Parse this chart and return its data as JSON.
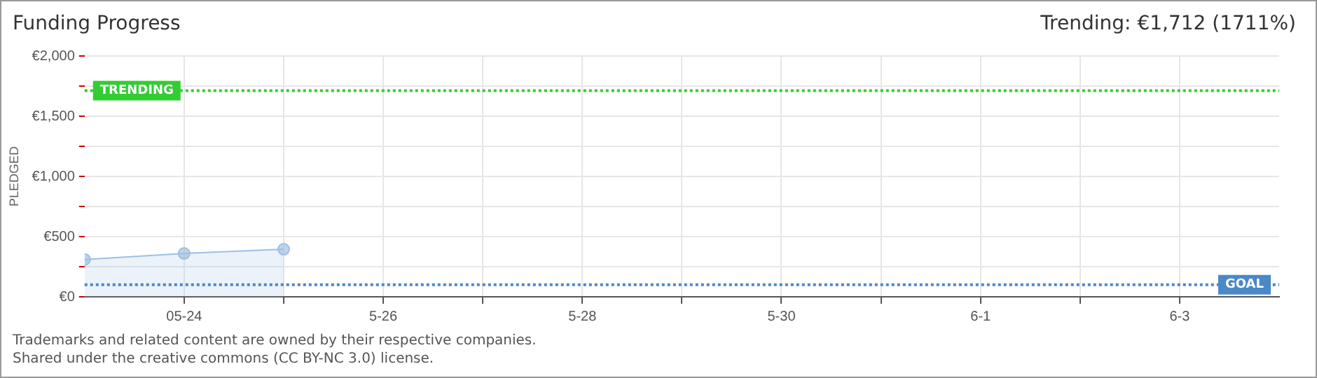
{
  "chart_data": {
    "type": "area",
    "title": "Funding Progress",
    "subtitle": "Trending:  €1,712 (1711%)",
    "ylabel": "PLEDGED",
    "xlim": [
      "--05-23",
      "--06-04"
    ],
    "xticks": [
      {
        "value": "--05-24",
        "label": "05-24"
      },
      {
        "value": "--05-25",
        "label": null
      },
      {
        "value": "--05-26",
        "label": "5-26"
      },
      {
        "value": "--05-27",
        "label": null
      },
      {
        "value": "--05-28",
        "label": "5-28"
      },
      {
        "value": "--05-29",
        "label": null
      },
      {
        "value": "--05-30",
        "label": "5-30"
      },
      {
        "value": "--05-31",
        "label": null
      },
      {
        "value": "--06-01",
        "label": "6-1"
      },
      {
        "value": "--06-02",
        "label": null
      },
      {
        "value": "--06-03",
        "label": "6-3"
      }
    ],
    "ylim": [
      0,
      2000
    ],
    "yticks": [
      {
        "value": 0,
        "label": "€0"
      },
      {
        "value": 250,
        "label": null
      },
      {
        "value": 500,
        "label": "€500"
      },
      {
        "value": 750,
        "label": null
      },
      {
        "value": 1000,
        "label": "€1,000"
      },
      {
        "value": 1250,
        "label": null
      },
      {
        "value": 1500,
        "label": "€1,500"
      },
      {
        "value": 1750,
        "label": null
      },
      {
        "value": 2000,
        "label": "€2,000"
      }
    ],
    "series": [
      {
        "color": "#9dbfe3",
        "x": [
          "--05-23",
          "--05-24",
          "--05-25"
        ],
        "values": [
          310,
          360,
          395
        ]
      }
    ],
    "ref_lines": [
      {
        "axis": "y",
        "value": 1712,
        "label": "TRENDING",
        "color": "#33cc33",
        "line_style": "dotted"
      },
      {
        "axis": "y",
        "value": 100,
        "label": "GOAL",
        "color": "#4a88c8",
        "line_style": "dotted"
      }
    ],
    "grid": true,
    "legend": false,
    "marker": "circle",
    "line_style": "solid",
    "annotations": [
      "Trademarks and related content are owned by their respective companies.",
      "Shared under the creative commons (CC BY-NC 3.0) license."
    ]
  }
}
